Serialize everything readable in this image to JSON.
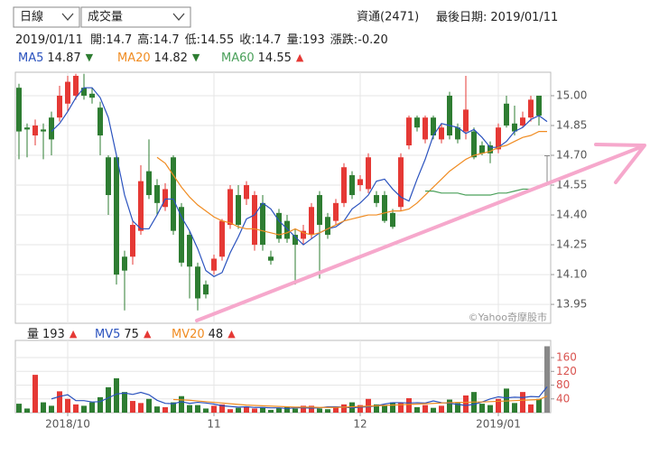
{
  "header": {
    "period": "日線",
    "indicator": "成交量",
    "stock": "資通(2471)",
    "last_date_label": "最後日期:",
    "last_date": "2019/01/11",
    "quote": {
      "date": "2019/01/11",
      "items": [
        {
          "label": "開:",
          "value": "14.7"
        },
        {
          "label": "高:",
          "value": "14.7"
        },
        {
          "label": "低:",
          "value": "14.55"
        },
        {
          "label": "收:",
          "value": "14.7"
        },
        {
          "label": "量:",
          "value": "193"
        },
        {
          "label": "漲跌:",
          "value": "-0.20"
        }
      ]
    }
  },
  "watermark": "©Yahoo奇摩股市",
  "chart_data": [
    {
      "type": "candlestick",
      "up_color": "#e53935",
      "down_color": "#2e7d32",
      "flat_color": "#888888",
      "categories": [
        null,
        null,
        null,
        null,
        null,
        null,
        "2018/10",
        null,
        null,
        null,
        null,
        null,
        null,
        null,
        null,
        null,
        null,
        null,
        null,
        null,
        null,
        null,
        null,
        null,
        "11",
        null,
        null,
        null,
        null,
        null,
        null,
        null,
        null,
        null,
        null,
        null,
        null,
        null,
        null,
        null,
        null,
        null,
        "12",
        null,
        null,
        null,
        null,
        null,
        null,
        null,
        null,
        null,
        null,
        null,
        null,
        null,
        null,
        null,
        null,
        "2019/01",
        null,
        null,
        null,
        null,
        null,
        null
      ],
      "open": [
        15.04,
        14.84,
        14.8,
        14.83,
        14.89,
        14.89,
        14.96,
        15.0,
        15.04,
        15.01,
        14.94,
        14.69,
        14.69,
        14.19,
        14.19,
        14.32,
        14.62,
        14.55,
        14.44,
        14.69,
        14.44,
        14.3,
        14.14,
        14.05,
        14.12,
        14.19,
        14.35,
        14.5,
        14.48,
        14.25,
        14.46,
        14.19,
        14.41,
        14.37,
        14.3,
        14.28,
        14.3,
        14.5,
        14.39,
        14.37,
        14.46,
        14.6,
        14.55,
        14.53,
        14.5,
        14.5,
        14.41,
        14.44,
        14.75,
        14.89,
        14.78,
        14.89,
        14.78,
        15.0,
        14.84,
        14.82,
        14.82,
        14.75,
        14.75,
        14.73,
        14.96,
        14.86,
        14.85,
        14.89,
        15.0,
        14.7
      ],
      "high": [
        15.06,
        14.86,
        14.88,
        14.86,
        14.92,
        15.05,
        15.1,
        15.11,
        15.11,
        15.04,
        14.97,
        14.7,
        14.7,
        14.22,
        14.37,
        14.65,
        14.78,
        14.58,
        14.56,
        14.7,
        14.46,
        14.32,
        14.16,
        14.07,
        14.2,
        14.38,
        14.55,
        14.55,
        14.57,
        14.52,
        14.5,
        14.22,
        14.43,
        14.4,
        14.33,
        14.35,
        14.46,
        14.52,
        14.41,
        14.48,
        14.66,
        14.62,
        14.6,
        14.71,
        14.52,
        14.52,
        14.43,
        14.71,
        14.9,
        14.9,
        14.9,
        14.9,
        14.86,
        15.02,
        14.86,
        15.1,
        14.84,
        14.77,
        14.77,
        14.86,
        15.0,
        14.95,
        14.92,
        15.0,
        15.0,
        14.7
      ],
      "low": [
        14.68,
        14.69,
        14.75,
        14.68,
        14.7,
        14.87,
        14.92,
        14.98,
        14.98,
        14.96,
        14.7,
        14.4,
        14.05,
        13.92,
        14.15,
        14.3,
        14.48,
        14.4,
        14.42,
        14.3,
        14.14,
        13.98,
        13.92,
        13.98,
        14.1,
        14.17,
        14.33,
        14.33,
        14.45,
        14.22,
        14.22,
        14.15,
        14.26,
        14.26,
        14.05,
        14.25,
        14.28,
        14.08,
        14.28,
        14.35,
        14.44,
        14.48,
        14.52,
        14.51,
        14.44,
        14.36,
        14.33,
        14.42,
        14.73,
        14.82,
        14.76,
        14.78,
        14.76,
        14.78,
        14.76,
        14.78,
        14.68,
        14.7,
        14.66,
        14.71,
        14.84,
        14.8,
        14.84,
        14.87,
        14.85,
        14.55
      ],
      "close": [
        14.82,
        14.83,
        14.85,
        14.82,
        14.78,
        15.0,
        15.07,
        15.1,
        15.0,
        14.99,
        14.8,
        14.5,
        14.1,
        14.12,
        14.35,
        14.57,
        14.5,
        14.46,
        14.53,
        14.32,
        14.16,
        14.14,
        13.98,
        14.0,
        14.18,
        14.37,
        14.53,
        14.35,
        14.55,
        14.5,
        14.25,
        14.17,
        14.28,
        14.28,
        14.25,
        14.32,
        14.44,
        14.35,
        14.3,
        14.46,
        14.64,
        14.5,
        14.58,
        14.69,
        14.46,
        14.37,
        14.34,
        14.69,
        14.89,
        14.84,
        14.89,
        14.8,
        14.84,
        14.8,
        14.78,
        14.93,
        14.69,
        14.71,
        14.71,
        14.84,
        14.85,
        14.82,
        14.89,
        14.98,
        14.9,
        14.7
      ],
      "series": [
        {
          "name": "MA5",
          "color": "#2a52be",
          "trend": "▼",
          "trend_color": "#2e7d32",
          "values": [
            null,
            null,
            null,
            null,
            14.82,
            14.86,
            14.92,
            14.99,
            15.04,
            15.04,
            14.99,
            14.89,
            14.7,
            14.5,
            14.37,
            14.33,
            14.33,
            14.4,
            14.48,
            14.48,
            14.39,
            14.32,
            14.23,
            14.12,
            14.09,
            14.11,
            14.21,
            14.29,
            14.38,
            14.4,
            14.46,
            14.43,
            14.37,
            14.33,
            14.29,
            14.25,
            14.28,
            14.31,
            14.33,
            14.34,
            14.37,
            14.43,
            14.46,
            14.5,
            14.57,
            14.58,
            14.53,
            14.49,
            14.47,
            14.58,
            14.68,
            14.8,
            14.86,
            14.85,
            14.84,
            14.81,
            14.83,
            14.79,
            14.74,
            14.74,
            14.77,
            14.82,
            14.84,
            14.88,
            14.9,
            14.87
          ]
        },
        {
          "name": "MA20",
          "color": "#f08c22",
          "trend": "▼",
          "trend_color": "#2e7d32",
          "values": [
            null,
            null,
            null,
            null,
            null,
            null,
            null,
            null,
            null,
            null,
            null,
            null,
            null,
            null,
            null,
            null,
            null,
            14.69,
            14.66,
            14.6,
            14.54,
            14.49,
            14.45,
            14.42,
            14.39,
            14.37,
            14.36,
            14.34,
            14.33,
            14.33,
            14.32,
            14.31,
            14.3,
            14.31,
            14.33,
            14.31,
            14.3,
            14.31,
            14.33,
            14.35,
            14.37,
            14.38,
            14.39,
            14.4,
            14.4,
            14.41,
            14.42,
            14.42,
            14.43,
            14.46,
            14.5,
            14.54,
            14.58,
            14.62,
            14.65,
            14.68,
            14.7,
            14.71,
            14.72,
            14.74,
            14.75,
            14.77,
            14.79,
            14.8,
            14.82,
            14.82
          ]
        },
        {
          "name": "MA60",
          "color": "#4aa05a",
          "trend": "▲",
          "trend_color": "#e53935",
          "values": [
            null,
            null,
            null,
            null,
            null,
            null,
            null,
            null,
            null,
            null,
            null,
            null,
            null,
            null,
            null,
            null,
            null,
            null,
            null,
            null,
            null,
            null,
            null,
            null,
            null,
            null,
            null,
            null,
            null,
            null,
            null,
            null,
            null,
            null,
            null,
            null,
            null,
            null,
            null,
            null,
            null,
            null,
            null,
            null,
            null,
            null,
            null,
            null,
            null,
            null,
            14.52,
            14.52,
            14.51,
            14.51,
            14.51,
            14.5,
            14.5,
            14.5,
            14.5,
            14.51,
            14.51,
            14.52,
            14.53,
            14.53,
            14.54,
            14.55
          ]
        }
      ],
      "ylim": [
        13.855,
        15.118
      ],
      "yticks": [
        {
          "value": 15,
          "label": "15.00"
        },
        14.85,
        {
          "value": 14.7,
          "label": "14.70"
        },
        14.55,
        {
          "value": 14.4,
          "label": "14.40"
        },
        14.25,
        {
          "value": 14.1,
          "label": "14.10"
        },
        13.95
      ],
      "grid": true
    },
    {
      "type": "bar",
      "series": [
        {
          "name": "量",
          "color": "#222222",
          "trend": "▲",
          "trend_color": "#e53935",
          "values": [
            26,
            12,
            110,
            30,
            20,
            62,
            40,
            24,
            20,
            30,
            45,
            74,
            100,
            60,
            34,
            28,
            40,
            18,
            16,
            30,
            48,
            22,
            22,
            12,
            20,
            24,
            10,
            14,
            18,
            12,
            16,
            8,
            14,
            18,
            12,
            20,
            20,
            12,
            10,
            18,
            24,
            30,
            22,
            40,
            24,
            20,
            30,
            28,
            42,
            16,
            22,
            14,
            20,
            38,
            28,
            50,
            60,
            26,
            22,
            40,
            70,
            28,
            60,
            24,
            40,
            193
          ]
        },
        {
          "name": "MV5",
          "color": "#2a52be",
          "trend": "▲",
          "trend_color": "#e53935",
          "values": [
            null,
            null,
            null,
            null,
            40,
            47,
            52,
            35,
            35,
            31,
            32,
            43,
            54,
            57,
            53,
            59,
            52,
            36,
            27,
            26,
            32,
            27,
            30,
            28,
            25,
            20,
            18,
            16,
            17,
            15,
            15,
            14,
            14,
            12,
            14,
            14,
            13,
            14,
            17,
            17,
            16,
            14,
            16,
            17,
            20,
            25,
            29,
            29,
            28,
            29,
            28,
            34,
            29,
            27,
            24,
            21,
            24,
            31,
            40,
            46,
            43,
            45,
            44,
            47,
            46,
            75
          ]
        },
        {
          "name": "MV20",
          "color": "#f08c22",
          "trend": "▲",
          "trend_color": "#e53935",
          "values": [
            null,
            null,
            null,
            null,
            null,
            null,
            null,
            null,
            null,
            null,
            null,
            null,
            null,
            null,
            null,
            null,
            null,
            null,
            null,
            38,
            37,
            36,
            34,
            32,
            30,
            28,
            26,
            24,
            22,
            21,
            20,
            19,
            18,
            17,
            16,
            16,
            16,
            15,
            15,
            15,
            16,
            17,
            18,
            19,
            20,
            21,
            22,
            23,
            24,
            25,
            26,
            27,
            28,
            29,
            30,
            30,
            31,
            31,
            32,
            33,
            34,
            35,
            36,
            37,
            38,
            48
          ]
        }
      ],
      "ylim": [
        0,
        210
      ],
      "yticks": [
        40,
        80,
        120,
        160
      ],
      "grid": true
    }
  ]
}
